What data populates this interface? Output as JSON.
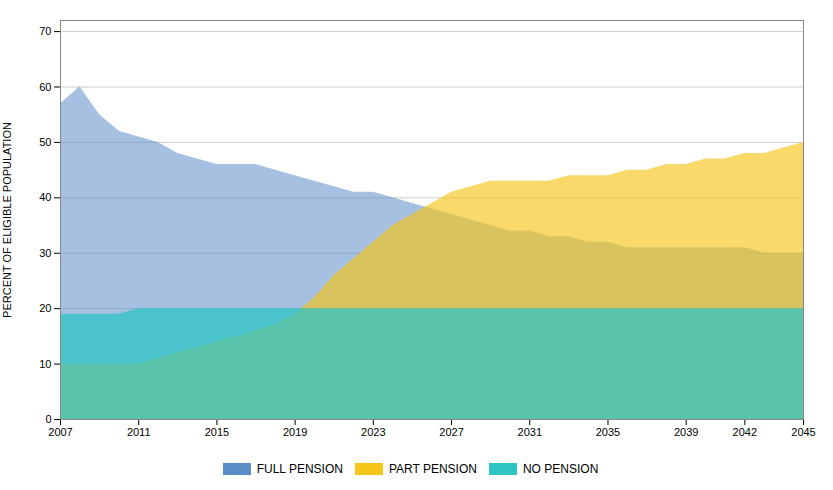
{
  "chart_data": {
    "type": "area",
    "x": [
      2007,
      2008,
      2009,
      2010,
      2011,
      2012,
      2013,
      2014,
      2015,
      2016,
      2017,
      2018,
      2019,
      2020,
      2021,
      2022,
      2023,
      2024,
      2025,
      2026,
      2027,
      2028,
      2029,
      2030,
      2031,
      2032,
      2033,
      2034,
      2035,
      2036,
      2037,
      2038,
      2039,
      2040,
      2041,
      2042,
      2043,
      2044,
      2045
    ],
    "series": [
      {
        "name": "FULL PENSION",
        "color": "#5B8DC8",
        "values": [
          57,
          60,
          55,
          52,
          51,
          50,
          48,
          47,
          46,
          46,
          46,
          45,
          44,
          43,
          42,
          41,
          41,
          40,
          39,
          38,
          37,
          36,
          35,
          34,
          34,
          33,
          33,
          32,
          32,
          31,
          31,
          31,
          31,
          31,
          31,
          31,
          30,
          30,
          30
        ]
      },
      {
        "name": "PART PENSION",
        "color": "#F5C518",
        "values": [
          10,
          10,
          10,
          10,
          10,
          11,
          12,
          13,
          14,
          15,
          16,
          17,
          19,
          22,
          26,
          29,
          32,
          35,
          37,
          39,
          41,
          42,
          43,
          43,
          43,
          43,
          44,
          44,
          44,
          45,
          45,
          46,
          46,
          47,
          47,
          48,
          48,
          49,
          50
        ]
      },
      {
        "name": "NO PENSION",
        "color": "#2EC4C4",
        "values": [
          19,
          19,
          19,
          19,
          20,
          20,
          20,
          20,
          20,
          20,
          20,
          20,
          20,
          20,
          20,
          20,
          20,
          20,
          20,
          20,
          20,
          20,
          20,
          20,
          20,
          20,
          20,
          20,
          20,
          20,
          20,
          20,
          20,
          20,
          20,
          20,
          20,
          20,
          20
        ]
      }
    ],
    "xlim": [
      2007,
      2045
    ],
    "xticks": [
      2007,
      2011,
      2015,
      2019,
      2023,
      2027,
      2031,
      2035,
      2039,
      2042,
      2045
    ],
    "ylim": [
      0,
      72
    ],
    "yticks": [
      0,
      10,
      20,
      30,
      40,
      50,
      60,
      70
    ],
    "ylabel": "PERCENT OF ELIGIBLE POPULATION",
    "grid": true,
    "legend": "bottom"
  }
}
